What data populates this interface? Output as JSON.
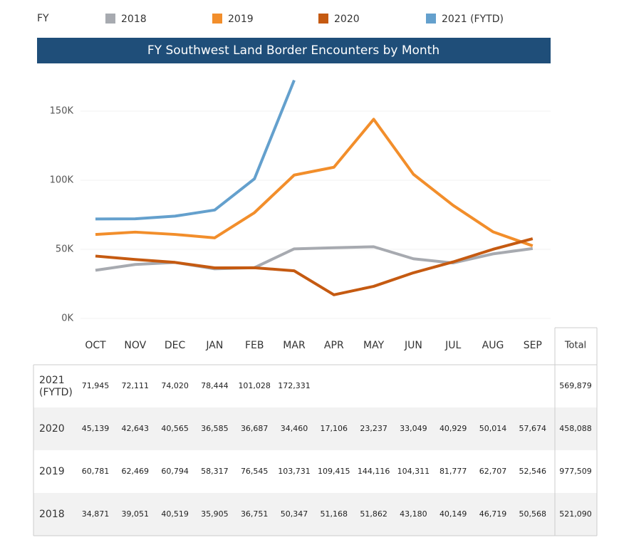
{
  "chart_data": {
    "type": "line",
    "title": "FY Southwest Land Border Encounters by Month",
    "legend_title": "FY",
    "categories": [
      "OCT",
      "NOV",
      "DEC",
      "JAN",
      "FEB",
      "MAR",
      "APR",
      "MAY",
      "JUN",
      "JUL",
      "AUG",
      "SEP"
    ],
    "total_header": "Total",
    "ylim": [
      0,
      180000
    ],
    "yticks": [
      {
        "value": 0,
        "label": "0K"
      },
      {
        "value": 50000,
        "label": "50K"
      },
      {
        "value": 100000,
        "label": "100K"
      },
      {
        "value": 150000,
        "label": "150K"
      }
    ],
    "grid": true,
    "series": [
      {
        "name": "2018",
        "color": "#a7aab0",
        "values": [
          34871,
          39051,
          40519,
          35905,
          36751,
          50347,
          51168,
          51862,
          43180,
          40149,
          46719,
          50568
        ],
        "value_labels": [
          "34,871",
          "39,051",
          "40,519",
          "35,905",
          "36,751",
          "50,347",
          "51,168",
          "51,862",
          "43,180",
          "40,149",
          "46,719",
          "50,568"
        ],
        "total": "521,090"
      },
      {
        "name": "2019",
        "color": "#f28e2b",
        "values": [
          60781,
          62469,
          60794,
          58317,
          76545,
          103731,
          109415,
          144116,
          104311,
          81777,
          62707,
          52546
        ],
        "value_labels": [
          "60,781",
          "62,469",
          "60,794",
          "58,317",
          "76,545",
          "103,731",
          "109,415",
          "144,116",
          "104,311",
          "81,777",
          "62,707",
          "52,546"
        ],
        "total": "977,509"
      },
      {
        "name": "2020",
        "color": "#c55a11",
        "values": [
          45139,
          42643,
          40565,
          36585,
          36687,
          34460,
          17106,
          23237,
          33049,
          40929,
          50014,
          57674
        ],
        "value_labels": [
          "45,139",
          "42,643",
          "40,565",
          "36,585",
          "36,687",
          "34,460",
          "17,106",
          "23,237",
          "33,049",
          "40,929",
          "50,014",
          "57,674"
        ],
        "total": "458,088"
      },
      {
        "name": "2021 (FYTD)",
        "color": "#64a0cd",
        "values": [
          71945,
          72111,
          74020,
          78444,
          101028,
          172331,
          null,
          null,
          null,
          null,
          null,
          null
        ],
        "value_labels": [
          "71,945",
          "72,111",
          "74,020",
          "78,444",
          "101,028",
          "172,331",
          null,
          null,
          null,
          null,
          null,
          null
        ],
        "total": "569,879"
      }
    ]
  }
}
